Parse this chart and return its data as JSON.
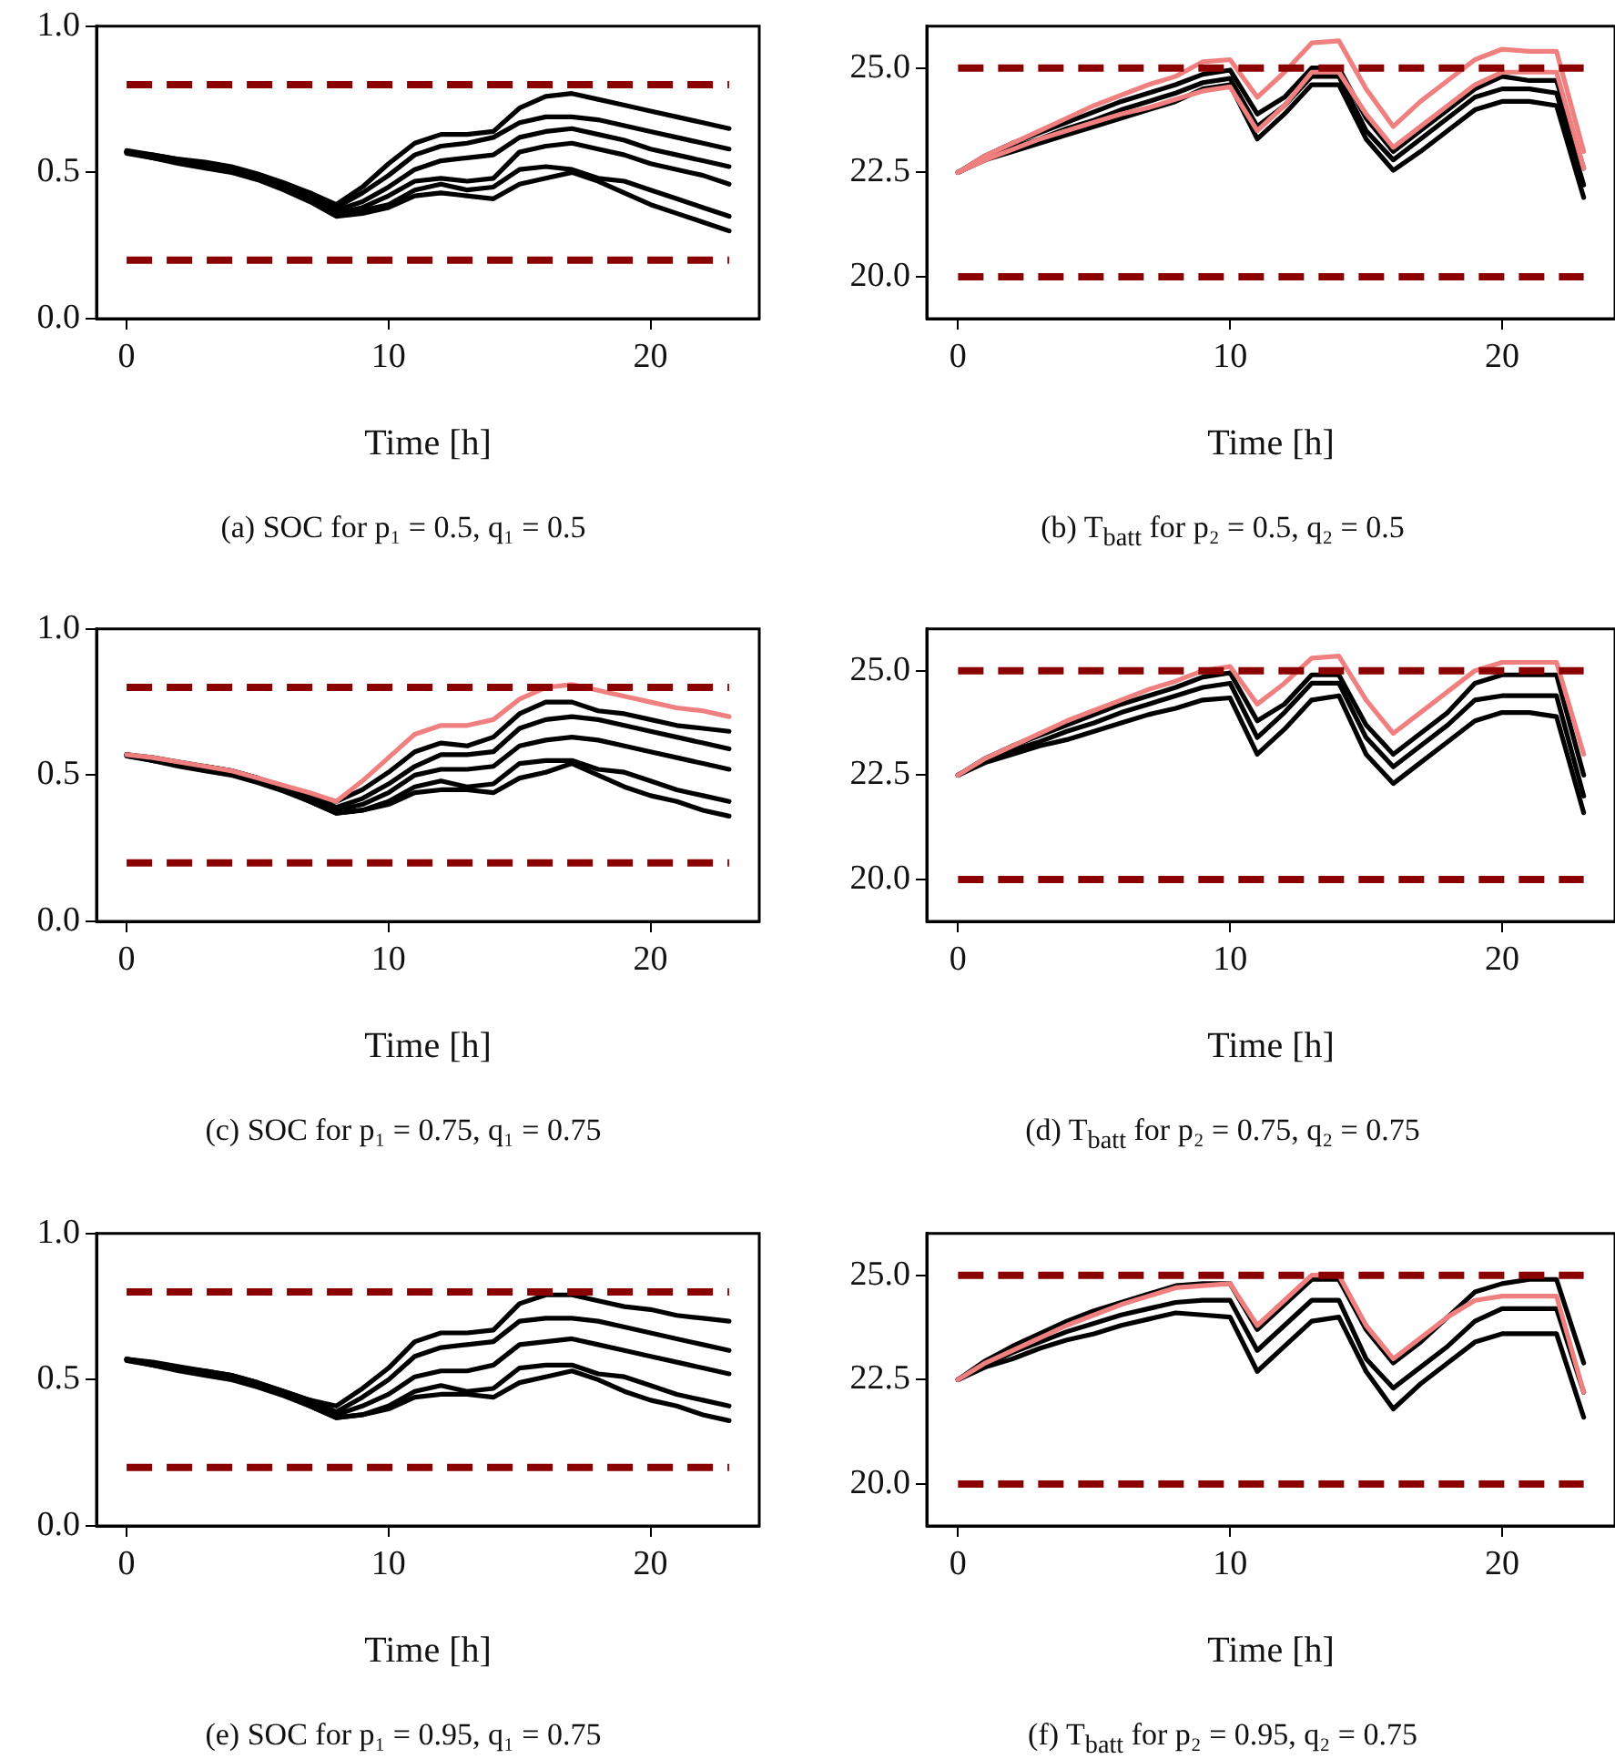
{
  "chart_data": [
    {
      "type": "line",
      "xlabel": "Time [h]",
      "annotations": [
        "(a) SOC for p₁ = 0.5, q₁ = 0.5"
      ],
      "x": [
        0,
        1,
        2,
        3,
        4,
        5,
        6,
        7,
        8,
        9,
        10,
        11,
        12,
        13,
        14,
        15,
        16,
        17,
        18,
        19,
        20,
        21,
        22,
        23
      ],
      "xlim": [
        -1.15,
        24.15
      ],
      "xticks": [
        0,
        10,
        20
      ],
      "ylim": [
        0,
        1
      ],
      "yticks": [
        {
          "value": 0,
          "label": "0.0"
        },
        {
          "value": 0.5,
          "label": "0.5"
        },
        {
          "value": 1,
          "label": "1.0"
        }
      ],
      "ref_lines": [
        {
          "axis": "y",
          "value": 0.8,
          "color": "#8b0000",
          "line_style": "dashed"
        },
        {
          "axis": "y",
          "value": 0.2,
          "color": "#8b0000",
          "line_style": "dashed"
        }
      ],
      "series": [
        {
          "color": "#000000",
          "values": [
            0.57,
            0.56,
            0.545,
            0.53,
            0.515,
            0.49,
            0.46,
            0.43,
            0.39,
            0.45,
            0.53,
            0.6,
            0.63,
            0.63,
            0.64,
            0.72,
            0.76,
            0.77,
            0.75,
            0.73,
            0.71,
            0.69,
            0.67,
            0.65
          ]
        },
        {
          "color": "#000000",
          "values": [
            0.575,
            0.56,
            0.545,
            0.535,
            0.52,
            0.495,
            0.465,
            0.43,
            0.38,
            0.43,
            0.49,
            0.56,
            0.59,
            0.6,
            0.62,
            0.67,
            0.69,
            0.69,
            0.68,
            0.66,
            0.64,
            0.62,
            0.6,
            0.58
          ]
        },
        {
          "color": "#000000",
          "values": [
            0.57,
            0.555,
            0.54,
            0.53,
            0.515,
            0.49,
            0.455,
            0.42,
            0.37,
            0.4,
            0.45,
            0.51,
            0.54,
            0.55,
            0.56,
            0.62,
            0.64,
            0.65,
            0.63,
            0.61,
            0.58,
            0.56,
            0.54,
            0.52
          ]
        },
        {
          "color": "#000000",
          "values": [
            0.57,
            0.555,
            0.54,
            0.525,
            0.51,
            0.485,
            0.45,
            0.41,
            0.36,
            0.38,
            0.42,
            0.47,
            0.48,
            0.47,
            0.48,
            0.57,
            0.59,
            0.6,
            0.58,
            0.56,
            0.53,
            0.51,
            0.49,
            0.46
          ]
        },
        {
          "color": "#000000",
          "values": [
            0.57,
            0.55,
            0.535,
            0.52,
            0.505,
            0.48,
            0.445,
            0.405,
            0.36,
            0.37,
            0.39,
            0.44,
            0.46,
            0.44,
            0.45,
            0.51,
            0.52,
            0.51,
            0.48,
            0.47,
            0.44,
            0.41,
            0.38,
            0.35
          ]
        },
        {
          "color": "#000000",
          "values": [
            0.565,
            0.55,
            0.53,
            0.515,
            0.5,
            0.475,
            0.44,
            0.4,
            0.35,
            0.36,
            0.38,
            0.42,
            0.43,
            0.42,
            0.41,
            0.46,
            0.48,
            0.5,
            0.47,
            0.43,
            0.39,
            0.36,
            0.33,
            0.3
          ]
        }
      ]
    },
    {
      "type": "line",
      "xlabel": "Time [h]",
      "annotations": [
        "(b) T$_{batt}$ for p₂ = 0.5, q₂ = 0.5"
      ],
      "x": [
        0,
        1,
        2,
        3,
        4,
        5,
        6,
        7,
        8,
        9,
        10,
        11,
        12,
        13,
        14,
        15,
        16,
        17,
        18,
        19,
        20,
        21,
        22,
        23
      ],
      "xlim": [
        -1.15,
        24.15
      ],
      "xticks": [
        0,
        10,
        20
      ],
      "ylim": [
        19,
        26
      ],
      "yticks": [
        {
          "value": 20,
          "label": "20.0"
        },
        {
          "value": 22.5,
          "label": "22.5"
        },
        {
          "value": 25,
          "label": "25.0"
        }
      ],
      "ref_lines": [
        {
          "axis": "y",
          "value": 25,
          "color": "#8b0000",
          "line_style": "dashed"
        },
        {
          "axis": "y",
          "value": 20,
          "color": "#8b0000",
          "line_style": "dashed"
        }
      ],
      "series": [
        {
          "color": "#f08080",
          "values": [
            22.5,
            22.9,
            23.2,
            23.5,
            23.8,
            24.1,
            24.35,
            24.6,
            24.8,
            25.15,
            25.2,
            24.3,
            24.9,
            25.6,
            25.65,
            24.5,
            23.6,
            24.2,
            24.7,
            25.2,
            25.45,
            25.4,
            25.4,
            23.0
          ]
        },
        {
          "color": "#f08080",
          "values": [
            22.5,
            22.8,
            23.05,
            23.3,
            23.5,
            23.7,
            23.9,
            24.05,
            24.25,
            24.45,
            24.55,
            23.5,
            24.1,
            24.9,
            24.9,
            23.9,
            23.1,
            23.6,
            24.1,
            24.6,
            24.9,
            24.9,
            24.9,
            22.6
          ]
        },
        {
          "color": "#000000",
          "values": [
            22.5,
            22.9,
            23.2,
            23.45,
            23.7,
            23.95,
            24.2,
            24.4,
            24.6,
            24.85,
            24.95,
            23.9,
            24.3,
            25.0,
            25.0,
            23.8,
            23.0,
            23.5,
            24.0,
            24.5,
            24.8,
            24.7,
            24.7,
            22.6
          ]
        },
        {
          "color": "#000000",
          "values": [
            22.5,
            22.85,
            23.1,
            23.3,
            23.55,
            23.75,
            24.0,
            24.2,
            24.4,
            24.65,
            24.75,
            23.6,
            24.1,
            24.8,
            24.8,
            23.5,
            22.8,
            23.3,
            23.8,
            24.3,
            24.5,
            24.5,
            24.4,
            22.2
          ]
        },
        {
          "color": "#000000",
          "values": [
            22.5,
            22.8,
            23.0,
            23.2,
            23.4,
            23.6,
            23.8,
            24.0,
            24.2,
            24.5,
            24.6,
            23.3,
            23.9,
            24.6,
            24.6,
            23.3,
            22.55,
            23.0,
            23.5,
            24.0,
            24.2,
            24.2,
            24.1,
            21.9
          ]
        }
      ]
    },
    {
      "type": "line",
      "xlabel": "Time [h]",
      "annotations": [
        "(c) SOC for p₁ = 0.75, q₁ = 0.75"
      ],
      "x": [
        0,
        1,
        2,
        3,
        4,
        5,
        6,
        7,
        8,
        9,
        10,
        11,
        12,
        13,
        14,
        15,
        16,
        17,
        18,
        19,
        20,
        21,
        22,
        23
      ],
      "xlim": [
        -1.15,
        24.15
      ],
      "xticks": [
        0,
        10,
        20
      ],
      "ylim": [
        0,
        1
      ],
      "yticks": [
        {
          "value": 0,
          "label": "0.0"
        },
        {
          "value": 0.5,
          "label": "0.5"
        },
        {
          "value": 1,
          "label": "1.0"
        }
      ],
      "ref_lines": [
        {
          "axis": "y",
          "value": 0.8,
          "color": "#8b0000",
          "line_style": "dashed"
        },
        {
          "axis": "y",
          "value": 0.2,
          "color": "#8b0000",
          "line_style": "dashed"
        }
      ],
      "series": [
        {
          "color": "#f08080",
          "values": [
            0.57,
            0.56,
            0.545,
            0.53,
            0.515,
            0.49,
            0.465,
            0.44,
            0.41,
            0.48,
            0.56,
            0.64,
            0.67,
            0.67,
            0.69,
            0.76,
            0.8,
            0.81,
            0.79,
            0.77,
            0.75,
            0.73,
            0.72,
            0.7
          ]
        },
        {
          "color": "#000000",
          "values": [
            0.57,
            0.56,
            0.545,
            0.53,
            0.515,
            0.49,
            0.46,
            0.43,
            0.41,
            0.45,
            0.51,
            0.58,
            0.61,
            0.6,
            0.63,
            0.71,
            0.75,
            0.75,
            0.72,
            0.71,
            0.69,
            0.67,
            0.66,
            0.65
          ]
        },
        {
          "color": "#000000",
          "values": [
            0.57,
            0.555,
            0.54,
            0.53,
            0.515,
            0.49,
            0.46,
            0.43,
            0.39,
            0.42,
            0.47,
            0.53,
            0.57,
            0.57,
            0.58,
            0.66,
            0.69,
            0.7,
            0.69,
            0.67,
            0.65,
            0.63,
            0.61,
            0.59
          ]
        },
        {
          "color": "#000000",
          "values": [
            0.57,
            0.555,
            0.54,
            0.525,
            0.51,
            0.485,
            0.455,
            0.42,
            0.38,
            0.4,
            0.44,
            0.5,
            0.52,
            0.52,
            0.53,
            0.6,
            0.62,
            0.63,
            0.62,
            0.6,
            0.58,
            0.56,
            0.54,
            0.52
          ]
        },
        {
          "color": "#000000",
          "values": [
            0.57,
            0.55,
            0.535,
            0.52,
            0.505,
            0.48,
            0.45,
            0.41,
            0.37,
            0.38,
            0.41,
            0.46,
            0.48,
            0.46,
            0.47,
            0.54,
            0.55,
            0.55,
            0.52,
            0.51,
            0.48,
            0.45,
            0.43,
            0.41
          ]
        },
        {
          "color": "#000000",
          "values": [
            0.565,
            0.55,
            0.53,
            0.515,
            0.5,
            0.475,
            0.445,
            0.41,
            0.37,
            0.38,
            0.4,
            0.44,
            0.45,
            0.45,
            0.44,
            0.49,
            0.51,
            0.54,
            0.5,
            0.46,
            0.43,
            0.41,
            0.38,
            0.36
          ]
        }
      ]
    },
    {
      "type": "line",
      "xlabel": "Time [h]",
      "annotations": [
        "(d) T$_{batt}$ for p₂ = 0.75, q₂ = 0.75"
      ],
      "x": [
        0,
        1,
        2,
        3,
        4,
        5,
        6,
        7,
        8,
        9,
        10,
        11,
        12,
        13,
        14,
        15,
        16,
        17,
        18,
        19,
        20,
        21,
        22,
        23
      ],
      "xlim": [
        -1.15,
        24.15
      ],
      "xticks": [
        0,
        10,
        20
      ],
      "ylim": [
        19,
        26
      ],
      "yticks": [
        {
          "value": 20,
          "label": "20.0"
        },
        {
          "value": 22.5,
          "label": "22.5"
        },
        {
          "value": 25,
          "label": "25.0"
        }
      ],
      "ref_lines": [
        {
          "axis": "y",
          "value": 25,
          "color": "#8b0000",
          "line_style": "dashed"
        },
        {
          "axis": "y",
          "value": 20,
          "color": "#8b0000",
          "line_style": "dashed"
        }
      ],
      "series": [
        {
          "color": "#f08080",
          "values": [
            22.5,
            22.9,
            23.2,
            23.5,
            23.8,
            24.05,
            24.3,
            24.55,
            24.75,
            25.0,
            25.1,
            24.2,
            24.7,
            25.3,
            25.35,
            24.3,
            23.5,
            24.0,
            24.5,
            25.0,
            25.2,
            25.2,
            25.2,
            23.0
          ]
        },
        {
          "color": "#000000",
          "values": [
            22.5,
            22.9,
            23.2,
            23.45,
            23.7,
            23.95,
            24.2,
            24.4,
            24.6,
            24.85,
            24.95,
            23.8,
            24.2,
            24.9,
            24.9,
            23.7,
            23.0,
            23.5,
            24.0,
            24.7,
            24.9,
            24.9,
            24.9,
            22.5
          ]
        },
        {
          "color": "#000000",
          "values": [
            22.5,
            22.85,
            23.1,
            23.3,
            23.55,
            23.75,
            24.0,
            24.2,
            24.4,
            24.6,
            24.7,
            23.4,
            24.0,
            24.7,
            24.7,
            23.4,
            22.7,
            23.2,
            23.7,
            24.3,
            24.4,
            24.4,
            24.4,
            22.0
          ]
        },
        {
          "color": "#000000",
          "values": [
            22.5,
            22.8,
            23.0,
            23.2,
            23.35,
            23.55,
            23.75,
            23.95,
            24.1,
            24.3,
            24.35,
            23.0,
            23.6,
            24.3,
            24.4,
            23.0,
            22.3,
            22.8,
            23.3,
            23.8,
            24.0,
            24.0,
            23.9,
            21.6
          ]
        }
      ]
    },
    {
      "type": "line",
      "xlabel": "Time [h]",
      "annotations": [
        "(e) SOC for p₁ = 0.95, q₁ = 0.75"
      ],
      "x": [
        0,
        1,
        2,
        3,
        4,
        5,
        6,
        7,
        8,
        9,
        10,
        11,
        12,
        13,
        14,
        15,
        16,
        17,
        18,
        19,
        20,
        21,
        22,
        23
      ],
      "xlim": [
        -1.15,
        24.15
      ],
      "xticks": [
        0,
        10,
        20
      ],
      "ylim": [
        0,
        1
      ],
      "yticks": [
        {
          "value": 0,
          "label": "0.0"
        },
        {
          "value": 0.5,
          "label": "0.5"
        },
        {
          "value": 1,
          "label": "1.0"
        }
      ],
      "ref_lines": [
        {
          "axis": "y",
          "value": 0.8,
          "color": "#8b0000",
          "line_style": "dashed"
        },
        {
          "axis": "y",
          "value": 0.2,
          "color": "#8b0000",
          "line_style": "dashed"
        }
      ],
      "series": [
        {
          "color": "#000000",
          "values": [
            0.57,
            0.56,
            0.545,
            0.53,
            0.515,
            0.49,
            0.46,
            0.43,
            0.41,
            0.47,
            0.54,
            0.63,
            0.66,
            0.66,
            0.67,
            0.76,
            0.79,
            0.79,
            0.77,
            0.75,
            0.74,
            0.72,
            0.71,
            0.7
          ]
        },
        {
          "color": "#000000",
          "values": [
            0.57,
            0.555,
            0.54,
            0.53,
            0.515,
            0.49,
            0.46,
            0.43,
            0.39,
            0.44,
            0.5,
            0.58,
            0.61,
            0.62,
            0.63,
            0.7,
            0.71,
            0.71,
            0.7,
            0.68,
            0.66,
            0.64,
            0.62,
            0.6
          ]
        },
        {
          "color": "#000000",
          "values": [
            0.57,
            0.555,
            0.54,
            0.525,
            0.51,
            0.485,
            0.455,
            0.42,
            0.38,
            0.41,
            0.45,
            0.51,
            0.53,
            0.53,
            0.55,
            0.62,
            0.63,
            0.64,
            0.62,
            0.6,
            0.58,
            0.56,
            0.54,
            0.52
          ]
        },
        {
          "color": "#000000",
          "values": [
            0.57,
            0.55,
            0.535,
            0.52,
            0.505,
            0.48,
            0.45,
            0.41,
            0.37,
            0.38,
            0.41,
            0.46,
            0.48,
            0.46,
            0.47,
            0.54,
            0.55,
            0.55,
            0.52,
            0.51,
            0.48,
            0.45,
            0.43,
            0.41
          ]
        },
        {
          "color": "#000000",
          "values": [
            0.565,
            0.55,
            0.53,
            0.515,
            0.5,
            0.475,
            0.445,
            0.41,
            0.37,
            0.38,
            0.4,
            0.44,
            0.45,
            0.45,
            0.44,
            0.49,
            0.51,
            0.53,
            0.5,
            0.46,
            0.43,
            0.41,
            0.38,
            0.36
          ]
        }
      ]
    },
    {
      "type": "line",
      "xlabel": "Time [h]",
      "annotations": [
        "(f) T$_{batt}$ for p₂ = 0.95, q₂ = 0.75"
      ],
      "x": [
        0,
        1,
        2,
        3,
        4,
        5,
        6,
        7,
        8,
        9,
        10,
        11,
        12,
        13,
        14,
        15,
        16,
        17,
        18,
        19,
        20,
        21,
        22,
        23
      ],
      "xlim": [
        -1.15,
        24.15
      ],
      "xticks": [
        0,
        10,
        20
      ],
      "ylim": [
        19,
        26
      ],
      "yticks": [
        {
          "value": 20,
          "label": "20.0"
        },
        {
          "value": 22.5,
          "label": "22.5"
        },
        {
          "value": 25,
          "label": "25.0"
        }
      ],
      "ref_lines": [
        {
          "axis": "y",
          "value": 25,
          "color": "#8b0000",
          "line_style": "dashed"
        },
        {
          "axis": "y",
          "value": 20,
          "color": "#8b0000",
          "line_style": "dashed"
        }
      ],
      "series": [
        {
          "color": "#f08080",
          "values": [
            22.5,
            22.9,
            23.2,
            23.5,
            23.8,
            24.05,
            24.3,
            24.5,
            24.7,
            24.75,
            24.8,
            23.8,
            24.4,
            25.0,
            25.0,
            23.8,
            23.0,
            23.5,
            24.0,
            24.4,
            24.5,
            24.5,
            24.5,
            22.2
          ]
        },
        {
          "color": "#000000",
          "values": [
            22.5,
            22.95,
            23.3,
            23.6,
            23.9,
            24.15,
            24.35,
            24.55,
            24.75,
            24.8,
            24.8,
            23.7,
            24.3,
            24.9,
            24.9,
            23.7,
            22.9,
            23.4,
            24.0,
            24.6,
            24.8,
            24.9,
            24.9,
            22.9
          ]
        },
        {
          "color": "#000000",
          "values": [
            22.5,
            22.85,
            23.15,
            23.4,
            23.65,
            23.85,
            24.05,
            24.2,
            24.35,
            24.4,
            24.4,
            23.2,
            23.8,
            24.4,
            24.4,
            23.0,
            22.3,
            22.8,
            23.3,
            23.9,
            24.2,
            24.2,
            24.2,
            22.2
          ]
        },
        {
          "color": "#000000",
          "values": [
            22.5,
            22.8,
            23.0,
            23.25,
            23.45,
            23.6,
            23.8,
            23.95,
            24.1,
            24.05,
            24.0,
            22.7,
            23.3,
            23.9,
            24.0,
            22.7,
            21.8,
            22.4,
            22.9,
            23.4,
            23.6,
            23.6,
            23.6,
            21.6
          ]
        }
      ]
    }
  ]
}
